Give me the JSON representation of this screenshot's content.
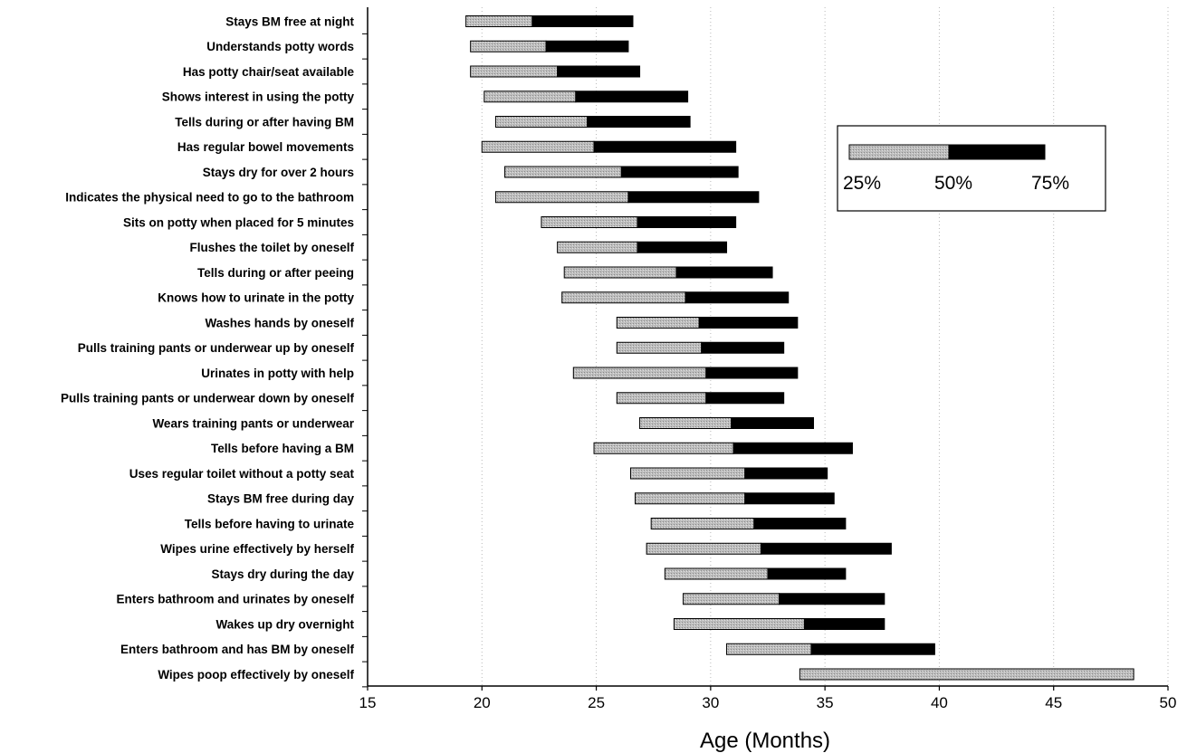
{
  "chart_data": {
    "type": "bar",
    "subtype": "stacked-horizontal-range",
    "title": "",
    "xlabel": "Age (Months)",
    "ylabel": "",
    "xlim": [
      15,
      50
    ],
    "xticks": [
      "15",
      "20",
      "25",
      "30",
      "35",
      "40",
      "45",
      "50"
    ],
    "grid": "vertical-dotted",
    "legend": {
      "placement": "top-right",
      "labels": [
        "25%",
        "50%",
        "75%"
      ]
    },
    "colors": {
      "p25_to_p50": "#c8c8c8",
      "p50_to_p75": "#000000"
    },
    "categories": [
      "Stays BM free at night",
      "Understands potty words",
      "Has potty chair/seat available",
      "Shows interest in using the potty",
      "Tells during or after having BM",
      "Has regular bowel movements",
      "Stays dry for over 2 hours",
      "Indicates the physical need to go to the bathroom",
      "Sits on potty when placed for 5 minutes",
      "Flushes the toilet by oneself",
      "Tells during or after peeing",
      "Knows how to urinate in the potty",
      "Washes hands by oneself",
      "Pulls training pants or underwear up by oneself",
      "Urinates in potty with help",
      "Pulls training pants or underwear down by oneself",
      "Wears training pants or underwear",
      "Tells before having a BM",
      "Uses regular toilet without a potty seat",
      "Stays BM free during day",
      "Tells before having to urinate",
      "Wipes urine effectively by herself",
      "Stays dry during the day",
      "Enters bathroom and urinates by oneself",
      "Wakes up dry overnight",
      "Enters bathroom and has BM by oneself",
      "Wipes poop effectively by oneself"
    ],
    "series": [
      {
        "name": "25%",
        "values": [
          19.3,
          19.5,
          19.5,
          20.1,
          20.6,
          20.0,
          21.0,
          20.6,
          22.6,
          23.3,
          23.6,
          23.5,
          25.9,
          25.9,
          24.0,
          25.9,
          26.9,
          24.9,
          26.5,
          26.7,
          27.4,
          27.2,
          28.0,
          28.8,
          28.4,
          30.7,
          33.9
        ]
      },
      {
        "name": "50%",
        "values": [
          22.2,
          22.8,
          23.3,
          24.1,
          24.6,
          24.9,
          26.1,
          26.4,
          26.8,
          26.8,
          28.5,
          28.9,
          29.5,
          29.6,
          29.8,
          29.8,
          30.9,
          31.0,
          31.5,
          31.5,
          31.9,
          32.2,
          32.5,
          33.0,
          34.1,
          34.4,
          48.5
        ]
      },
      {
        "name": "75%",
        "values": [
          26.6,
          26.4,
          26.9,
          29.0,
          29.1,
          31.1,
          31.2,
          32.1,
          31.1,
          30.7,
          32.7,
          33.4,
          33.8,
          33.2,
          33.8,
          33.2,
          34.5,
          36.2,
          35.1,
          35.4,
          35.9,
          37.9,
          35.9,
          37.6,
          37.6,
          39.8,
          48.5
        ]
      }
    ]
  }
}
